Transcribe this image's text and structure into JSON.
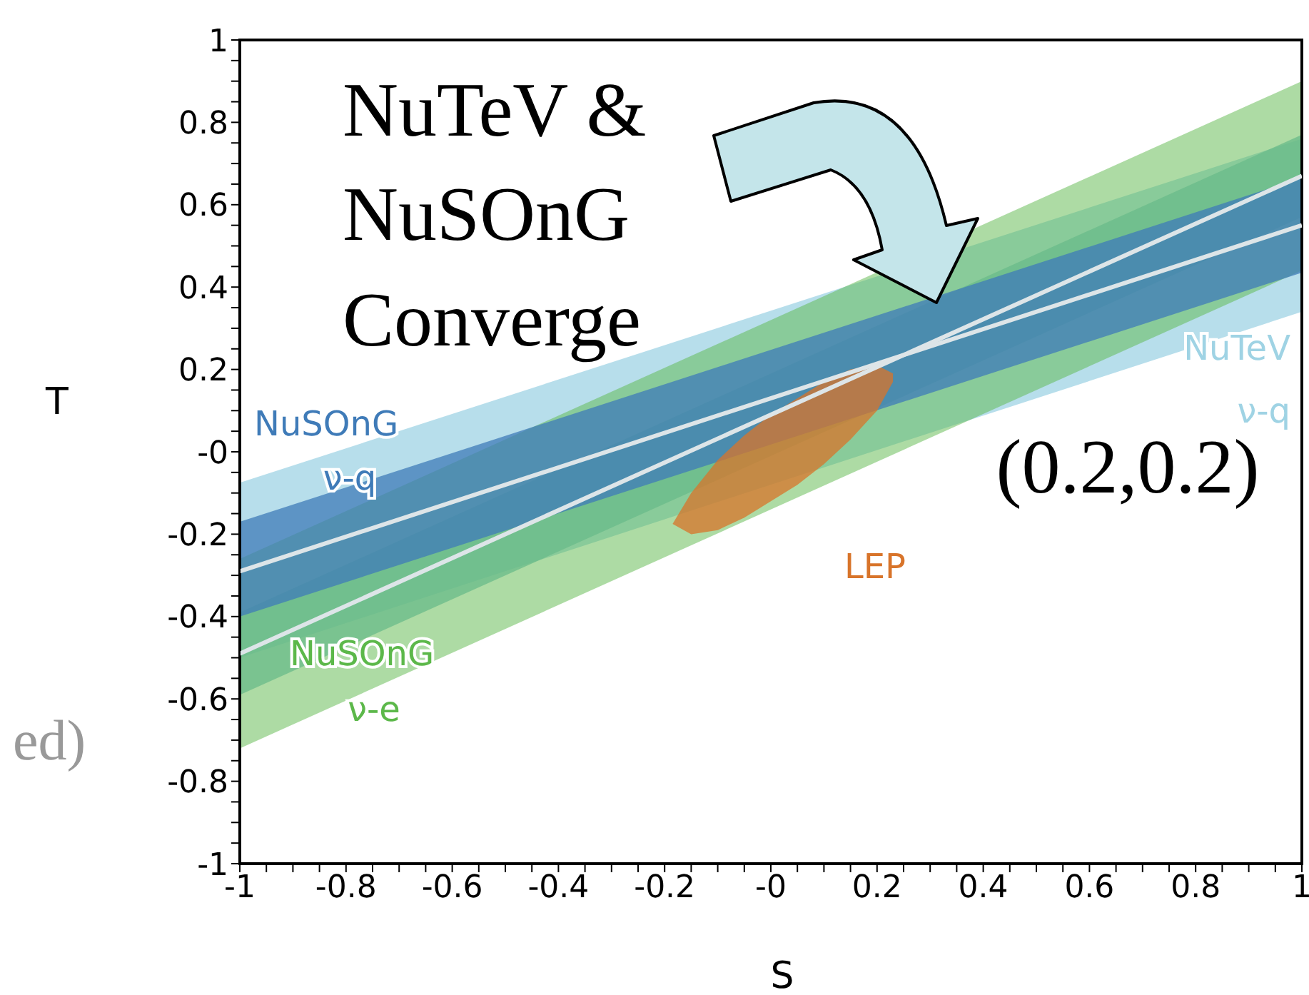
{
  "chart_data": {
    "type": "line",
    "xlabel": "S",
    "ylabel": "T",
    "xlim": [
      -1,
      1
    ],
    "ylim": [
      -1,
      1
    ],
    "xticks": [
      -1,
      {
        "value": -0.95,
        "label": null
      },
      {
        "value": -0.9,
        "label": null
      },
      {
        "value": -0.85,
        "label": null
      },
      -0.8,
      {
        "value": -0.75,
        "label": null
      },
      {
        "value": -0.7,
        "label": null
      },
      {
        "value": -0.65,
        "label": null
      },
      -0.6,
      {
        "value": -0.55,
        "label": null
      },
      {
        "value": -0.5,
        "label": null
      },
      {
        "value": -0.45,
        "label": null
      },
      -0.4,
      {
        "value": -0.35,
        "label": null
      },
      {
        "value": -0.3,
        "label": null
      },
      {
        "value": -0.25,
        "label": null
      },
      -0.2,
      {
        "value": -0.15,
        "label": null
      },
      {
        "value": -0.1,
        "label": null
      },
      {
        "value": -0.05,
        "label": null
      },
      {
        "value": 0,
        "label": "-0"
      },
      {
        "value": 0.05,
        "label": null
      },
      {
        "value": 0.1,
        "label": null
      },
      {
        "value": 0.15,
        "label": null
      },
      0.2,
      {
        "value": 0.25,
        "label": null
      },
      {
        "value": 0.3,
        "label": null
      },
      {
        "value": 0.35,
        "label": null
      },
      0.4,
      {
        "value": 0.45,
        "label": null
      },
      {
        "value": 0.5,
        "label": null
      },
      {
        "value": 0.55,
        "label": null
      },
      0.6,
      {
        "value": 0.65,
        "label": null
      },
      {
        "value": 0.7,
        "label": null
      },
      {
        "value": 0.75,
        "label": null
      },
      0.8,
      {
        "value": 0.85,
        "label": null
      },
      {
        "value": 0.9,
        "label": null
      },
      {
        "value": 0.95,
        "label": null
      },
      1
    ],
    "yticks": [
      -1,
      {
        "value": -0.95,
        "label": null
      },
      {
        "value": -0.9,
        "label": null
      },
      {
        "value": -0.85,
        "label": null
      },
      -0.8,
      {
        "value": -0.75,
        "label": null
      },
      {
        "value": -0.7,
        "label": null
      },
      {
        "value": -0.65,
        "label": null
      },
      -0.6,
      {
        "value": -0.55,
        "label": null
      },
      {
        "value": -0.5,
        "label": null
      },
      {
        "value": -0.45,
        "label": null
      },
      -0.4,
      {
        "value": -0.35,
        "label": null
      },
      {
        "value": -0.3,
        "label": null
      },
      {
        "value": -0.25,
        "label": null
      },
      -0.2,
      {
        "value": -0.15,
        "label": null
      },
      {
        "value": -0.1,
        "label": null
      },
      {
        "value": -0.05,
        "label": null
      },
      {
        "value": 0,
        "label": "-0"
      },
      {
        "value": 0.05,
        "label": null
      },
      {
        "value": 0.1,
        "label": null
      },
      {
        "value": 0.15,
        "label": null
      },
      0.2,
      {
        "value": 0.25,
        "label": null
      },
      {
        "value": 0.3,
        "label": null
      },
      {
        "value": 0.35,
        "label": null
      },
      0.4,
      {
        "value": 0.45,
        "label": null
      },
      {
        "value": 0.5,
        "label": null
      },
      {
        "value": 0.55,
        "label": null
      },
      0.6,
      {
        "value": 0.65,
        "label": null
      },
      {
        "value": 0.7,
        "label": null
      },
      {
        "value": 0.75,
        "label": null
      },
      0.8,
      {
        "value": 0.85,
        "label": null
      },
      {
        "value": 0.9,
        "label": null
      },
      {
        "value": 0.95,
        "label": null
      },
      1
    ],
    "series": [
      {
        "name": "NuTeV ν-q",
        "color": "#9fd3e4",
        "x": [
          -1,
          1
        ],
        "values": [
          null,
          null
        ],
        "lower": [
          -0.5,
          0.34
        ],
        "upper": [
          -0.075,
          0.76
        ]
      },
      {
        "name": "NuSOnG ν-e",
        "color": "#5cb84a",
        "x": [
          -1,
          1
        ],
        "values": [
          null,
          null
        ],
        "lower": [
          -0.72,
          0.44
        ],
        "upper": [
          -0.26,
          0.9
        ]
      },
      {
        "color": "#6abb8a",
        "x": [
          -1,
          1
        ],
        "values": [
          null,
          null
        ],
        "lower": [
          -0.59,
          0.57
        ],
        "upper": [
          -0.39,
          0.77
        ]
      },
      {
        "name": "NuSOnG ν-q",
        "color": "#3f7bb8",
        "x": [
          -1,
          1
        ],
        "values": [
          null,
          null
        ],
        "lower": [
          -0.4,
          0.435
        ],
        "upper": [
          -0.17,
          0.665
        ]
      },
      {
        "name": "LEP",
        "color": "#d8742a",
        "x": [
          -0.185,
          -0.15,
          -0.1,
          -0.05,
          0,
          0.05,
          0.1,
          0.15,
          0.2,
          0.23
        ],
        "values": [
          null,
          null,
          null,
          null,
          null,
          null,
          null,
          null,
          null,
          null
        ],
        "lower": [
          -0.175,
          -0.2,
          -0.19,
          -0.16,
          -0.12,
          -0.08,
          -0.03,
          0.03,
          0.1,
          0.17
        ],
        "upper": [
          -0.175,
          -0.1,
          -0.02,
          0.04,
          0.09,
          0.13,
          0.17,
          0.2,
          0.21,
          0.19
        ]
      },
      {
        "color": "#dde5e8",
        "x": [
          -1,
          1
        ],
        "values": [
          -0.29,
          0.55
        ]
      },
      {
        "color": "#dde5e8",
        "x": [
          -1,
          1
        ],
        "values": [
          -0.49,
          0.67
        ]
      }
    ],
    "annotations": [
      "NuTeV & NuSOnG Converge",
      "(0.2,0.2)",
      "ed)"
    ]
  }
}
